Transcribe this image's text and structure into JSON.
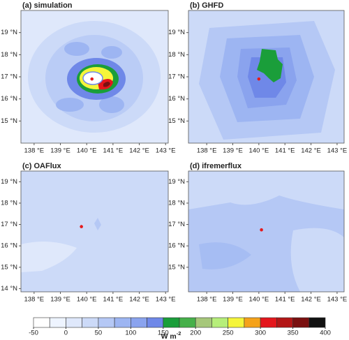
{
  "chart_data": [
    {
      "type": "contour",
      "title": "(a) simulation",
      "xlim": [
        137.5,
        143.1
      ],
      "ylim": [
        14,
        20
      ],
      "xticks": [
        {
          "value": 138,
          "label": "138 °E"
        },
        {
          "value": 139,
          "label": "139 °E"
        },
        {
          "value": 140,
          "label": "140 °E"
        },
        {
          "value": 141,
          "label": "141 °E"
        },
        {
          "value": 142,
          "label": "142 °E"
        },
        {
          "value": 143,
          "label": "143 °E"
        }
      ],
      "yticks": [
        {
          "value": 15,
          "label": "15 °N"
        },
        {
          "value": 16,
          "label": "16 °N"
        },
        {
          "value": 17,
          "label": "17 °N"
        },
        {
          "value": 18,
          "label": "18 °N"
        },
        {
          "value": 19,
          "label": "19 °N"
        }
      ],
      "points": {
        "color": "#e41a1c",
        "x": [
          140.2
        ],
        "y": [
          16.9
        ]
      }
    },
    {
      "type": "contour",
      "title": "(b) GHFD",
      "xlim": [
        137.3,
        143.27
      ],
      "ylim": [
        14,
        20
      ],
      "xticks": [
        {
          "value": 138,
          "label": "138 °E"
        },
        {
          "value": 139,
          "label": "139 °E"
        },
        {
          "value": 140,
          "label": "140 °E"
        },
        {
          "value": 141,
          "label": "141 °E"
        },
        {
          "value": 142,
          "label": "142 °E"
        },
        {
          "value": 143,
          "label": "143 °E"
        }
      ],
      "yticks": [
        {
          "value": 15,
          "label": "15 °N"
        },
        {
          "value": 16,
          "label": "16 °N"
        },
        {
          "value": 17,
          "label": "17 °N"
        },
        {
          "value": 18,
          "label": "18 °N"
        },
        {
          "value": 19,
          "label": "19 °N"
        }
      ],
      "points": {
        "color": "#e41a1c",
        "x": [
          140.0
        ],
        "y": [
          16.9
        ]
      }
    },
    {
      "type": "contour",
      "title": "(c) OAFlux",
      "xlim": [
        137.5,
        143.1
      ],
      "ylim": [
        13.85,
        19.5
      ],
      "xticks": [
        {
          "value": 138,
          "label": "138 °E"
        },
        {
          "value": 139,
          "label": "139 °E"
        },
        {
          "value": 140,
          "label": "140 °E"
        },
        {
          "value": 141,
          "label": "141 °E"
        },
        {
          "value": 142,
          "label": "142 °E"
        },
        {
          "value": 143,
          "label": "143 °E"
        }
      ],
      "yticks": [
        {
          "value": 14,
          "label": "14 °N"
        },
        {
          "value": 15,
          "label": "15 °N"
        },
        {
          "value": 16,
          "label": "16 °N"
        },
        {
          "value": 17,
          "label": "17 °N"
        },
        {
          "value": 18,
          "label": "18 °N"
        },
        {
          "value": 19,
          "label": "19 °N"
        }
      ],
      "points": {
        "color": "#e41a1c",
        "x": [
          139.8
        ],
        "y": [
          16.9
        ]
      }
    },
    {
      "type": "contour",
      "title": "(d) ifremerflux",
      "xlim": [
        137.3,
        143.27
      ],
      "ylim": [
        13.85,
        19.5
      ],
      "xticks": [
        {
          "value": 138,
          "label": "138 °E"
        },
        {
          "value": 139,
          "label": "139 °E"
        },
        {
          "value": 140,
          "label": "140 °E"
        },
        {
          "value": 141,
          "label": "141 °E"
        },
        {
          "value": 142,
          "label": "142 °E"
        },
        {
          "value": 143,
          "label": "143 °E"
        }
      ],
      "yticks": [
        {
          "value": 15,
          "label": "15 °N"
        },
        {
          "value": 16,
          "label": "16 °N"
        },
        {
          "value": 17,
          "label": "17 °N"
        },
        {
          "value": 18,
          "label": "18 °N"
        },
        {
          "value": 19,
          "label": "19 °N"
        }
      ],
      "points": {
        "color": "#e41a1c",
        "x": [
          140.1
        ],
        "y": [
          16.75
        ]
      }
    }
  ],
  "colorbar": {
    "levels": [
      -50,
      -25,
      0,
      25,
      50,
      75,
      100,
      125,
      150,
      175,
      200,
      225,
      250,
      275,
      300,
      325,
      350,
      375,
      400
    ],
    "colors": [
      "#ffffff",
      "#eef4ff",
      "#dfe8fb",
      "#ccdaf8",
      "#b5c8f5",
      "#9db5f2",
      "#8aa3ee",
      "#6f88e8",
      "#1a9e3a",
      "#46b04a",
      "#a6c77a",
      "#b6ee7a",
      "#f5f53a",
      "#f5a21a",
      "#e4161c",
      "#b31616",
      "#7a1010",
      "#111111"
    ],
    "ticks": [
      -50,
      0,
      50,
      100,
      150,
      200,
      250,
      300,
      350,
      400
    ],
    "label": "W m",
    "label_exp": "-2"
  }
}
